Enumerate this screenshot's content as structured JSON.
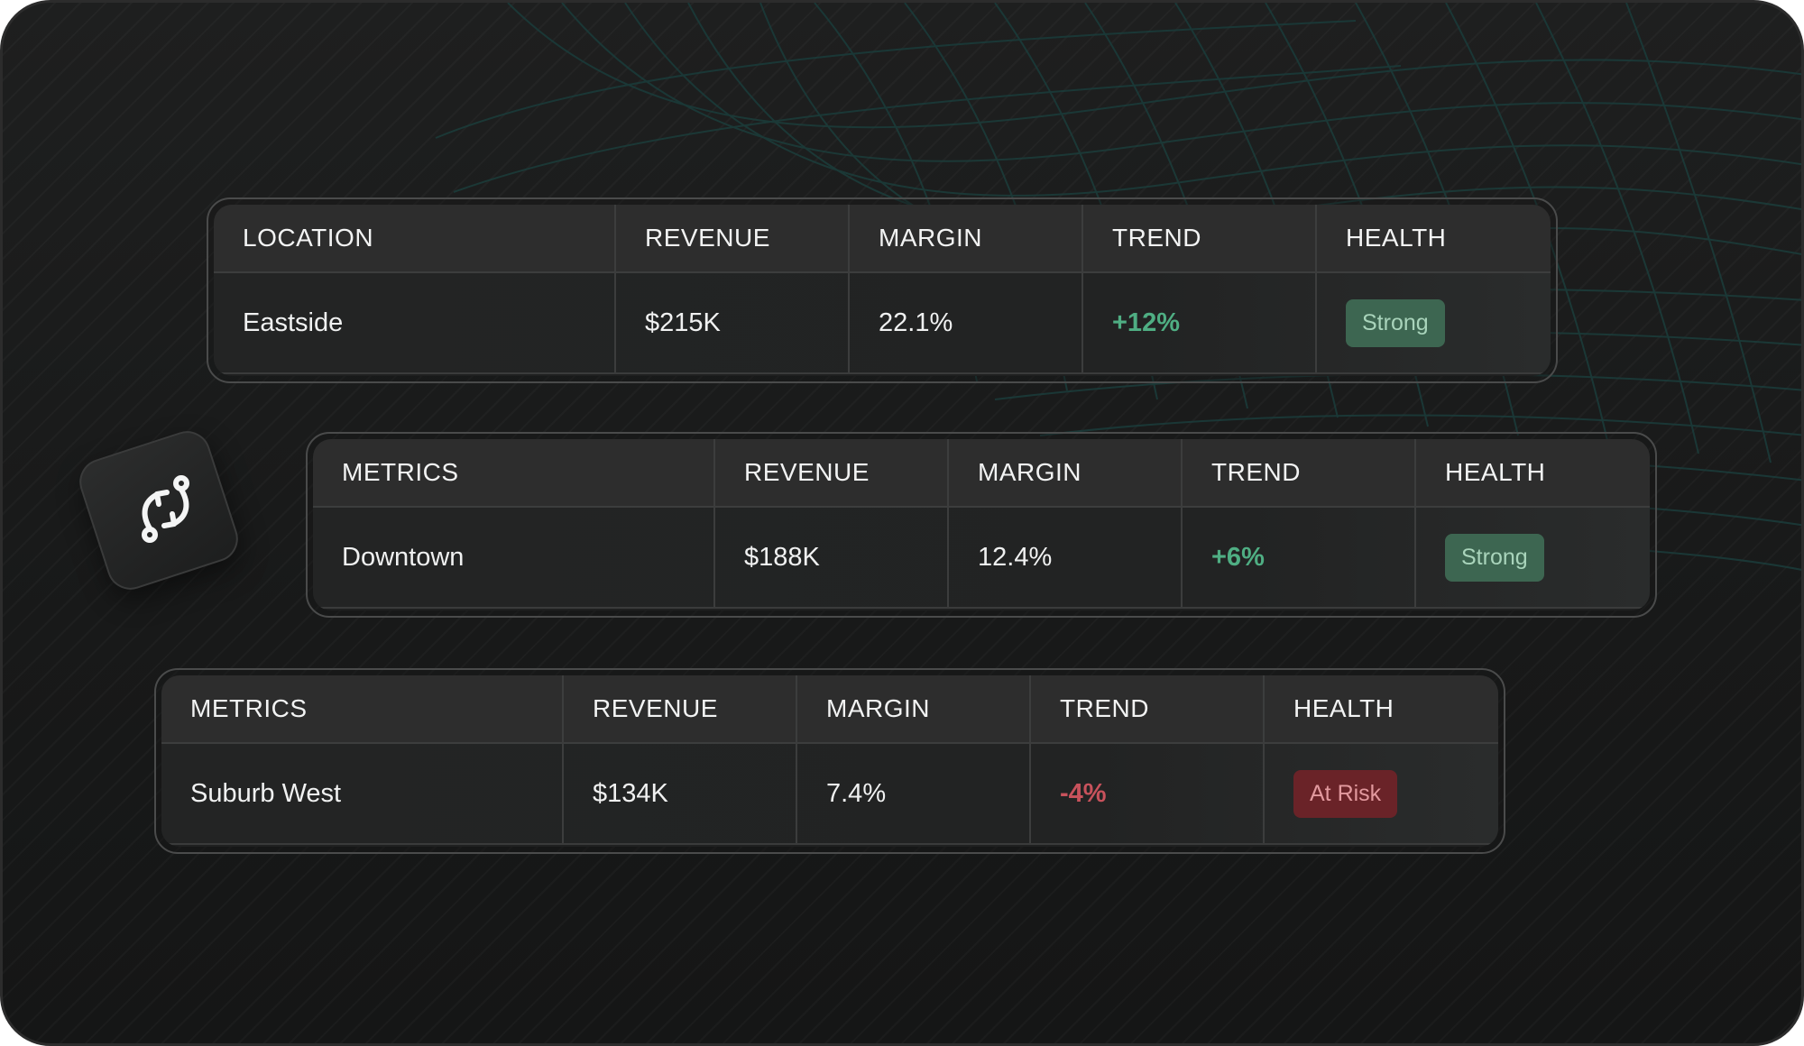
{
  "colors": {
    "trend_positive": "#4fae83",
    "trend_negative": "#c8525c",
    "badge_strong_bg": "#3d6651",
    "badge_risk_bg": "#6a2328",
    "wave_lines": "#1b3d3b"
  },
  "icon": {
    "name": "sync-arrows-icon"
  },
  "tables": [
    {
      "columns": [
        "LOCATION",
        "REVENUE",
        "MARGIN",
        "TREND",
        "HEALTH"
      ],
      "row": {
        "name": "Eastside",
        "revenue": "$215K",
        "margin": "22.1%",
        "trend": "+12%",
        "trend_direction": "up",
        "health": "Strong",
        "health_status": "good"
      }
    },
    {
      "columns": [
        "METRICS",
        "REVENUE",
        "MARGIN",
        "TREND",
        "HEALTH"
      ],
      "row": {
        "name": "Downtown",
        "revenue": "$188K",
        "margin": "12.4%",
        "trend": "+6%",
        "trend_direction": "up",
        "health": "Strong",
        "health_status": "good"
      }
    },
    {
      "columns": [
        "METRICS",
        "REVENUE",
        "MARGIN",
        "TREND",
        "HEALTH"
      ],
      "row": {
        "name": "Suburb West",
        "revenue": "$134K",
        "margin": "7.4%",
        "trend": "-4%",
        "trend_direction": "down",
        "health": "At Risk",
        "health_status": "risk"
      }
    }
  ]
}
